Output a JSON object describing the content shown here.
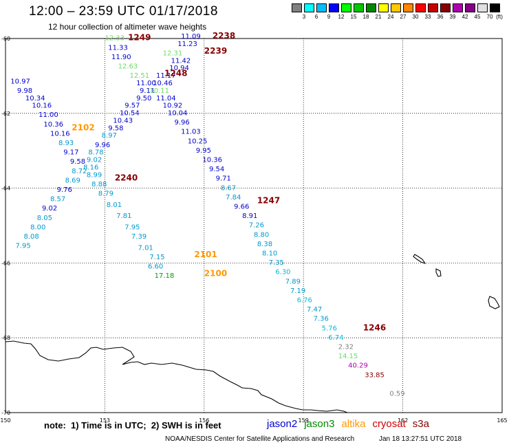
{
  "header": {
    "title": "12:00 – 23:59 UTC 01/17/2018",
    "subtitle": "12 hour collection of altimeter wave heights"
  },
  "color_scale": {
    "unit": "(ft)",
    "colors": [
      "#808080",
      "#00ffff",
      "#00bfff",
      "#0000ff",
      "#00ff00",
      "#00c800",
      "#008800",
      "#ffff00",
      "#ffc800",
      "#ff8800",
      "#ff0000",
      "#c80000",
      "#880000",
      "#b000b0",
      "#880088",
      "#e0e0e0",
      "#000000"
    ],
    "labels": [
      "3",
      "6",
      "9",
      "12",
      "15",
      "18",
      "21",
      "24",
      "27",
      "30",
      "33",
      "36",
      "39",
      "42",
      "45",
      "70"
    ]
  },
  "axes": {
    "x_ticks": [
      "150",
      "153",
      "156",
      "159",
      "162",
      "165"
    ],
    "y_ticks": [
      "-60",
      "-62",
      "-64",
      "-66",
      "-68",
      "-70"
    ]
  },
  "satellites": [
    {
      "name": "jason2",
      "color": "#0000cc"
    },
    {
      "name": "jason3",
      "color": "#008800"
    },
    {
      "name": "altika",
      "color": "#ff9900"
    },
    {
      "name": "cryosat",
      "color": "#cc0000"
    },
    {
      "name": "s3a",
      "color": "#880000"
    }
  ],
  "passes": [
    {
      "label": "1249",
      "lon": 153.7,
      "lat": -60.05,
      "color": "#880000"
    },
    {
      "label": "2238",
      "lon": 156.25,
      "lat": -60.0,
      "color": "#880000"
    },
    {
      "label": "2239",
      "lon": 156.0,
      "lat": -60.4,
      "color": "#880000"
    },
    {
      "label": "1248",
      "lon": 154.8,
      "lat": -61.0,
      "color": "#880000"
    },
    {
      "label": "2102",
      "lon": 152.0,
      "lat": -62.45,
      "color": "#ff9900"
    },
    {
      "label": "2240",
      "lon": 153.3,
      "lat": -63.8,
      "color": "#880000"
    },
    {
      "label": "1247",
      "lon": 157.6,
      "lat": -64.4,
      "color": "#880000"
    },
    {
      "label": "2101",
      "lon": 155.7,
      "lat": -65.85,
      "color": "#ff9900"
    },
    {
      "label": "2100",
      "lon": 156.0,
      "lat": -66.35,
      "color": "#ff9900"
    },
    {
      "label": "1246",
      "lon": 160.8,
      "lat": -67.8,
      "color": "#880000"
    }
  ],
  "wave_heights": [
    {
      "v": "12.33",
      "lon": 153.0,
      "lat": -60.05,
      "c": "#66dd66"
    },
    {
      "v": "11.33",
      "lon": 153.1,
      "lat": -60.3,
      "c": "#0000cc"
    },
    {
      "v": "11.90",
      "lon": 153.2,
      "lat": -60.55,
      "c": "#0000cc"
    },
    {
      "v": "12.63",
      "lon": 153.4,
      "lat": -60.8,
      "c": "#66dd66"
    },
    {
      "v": "12.51",
      "lon": 153.75,
      "lat": -61.05,
      "c": "#66dd66"
    },
    {
      "v": "11.00",
      "lon": 153.95,
      "lat": -61.25,
      "c": "#0000cc"
    },
    {
      "v": "9.11",
      "lon": 154.05,
      "lat": -61.45,
      "c": "#0000cc"
    },
    {
      "v": "9.50",
      "lon": 153.95,
      "lat": -61.65,
      "c": "#0000cc"
    },
    {
      "v": "9.57",
      "lon": 153.6,
      "lat": -61.85,
      "c": "#0000cc"
    },
    {
      "v": "10.54",
      "lon": 153.45,
      "lat": -62.05,
      "c": "#0000cc"
    },
    {
      "v": "10.43",
      "lon": 153.25,
      "lat": -62.25,
      "c": "#0000cc"
    },
    {
      "v": "9.58",
      "lon": 153.1,
      "lat": -62.45,
      "c": "#0000cc"
    },
    {
      "v": "8.97",
      "lon": 152.9,
      "lat": -62.65,
      "c": "#0099cc"
    },
    {
      "v": "9.96",
      "lon": 152.7,
      "lat": -62.9,
      "c": "#0000cc"
    },
    {
      "v": "8.78",
      "lon": 152.5,
      "lat": -63.1,
      "c": "#0099cc"
    },
    {
      "v": "9.02",
      "lon": 152.45,
      "lat": -63.3,
      "c": "#0099cc"
    },
    {
      "v": "8.16",
      "lon": 152.35,
      "lat": -63.5,
      "c": "#0099cc"
    },
    {
      "v": "8.99",
      "lon": 152.45,
      "lat": -63.7,
      "c": "#0099cc"
    },
    {
      "v": "8.88",
      "lon": 152.6,
      "lat": -63.95,
      "c": "#0099cc"
    },
    {
      "v": "8.79",
      "lon": 152.8,
      "lat": -64.2,
      "c": "#0099cc"
    },
    {
      "v": "8.01",
      "lon": 153.05,
      "lat": -64.5,
      "c": "#0099cc"
    },
    {
      "v": "7.81",
      "lon": 153.35,
      "lat": -64.8,
      "c": "#0099cc"
    },
    {
      "v": "7.95",
      "lon": 153.6,
      "lat": -65.1,
      "c": "#0099cc"
    },
    {
      "v": "7.39",
      "lon": 153.8,
      "lat": -65.35,
      "c": "#0099cc"
    },
    {
      "v": "7.01",
      "lon": 154.0,
      "lat": -65.65,
      "c": "#0099cc"
    },
    {
      "v": "7.15",
      "lon": 154.35,
      "lat": -65.9,
      "c": "#0099cc"
    },
    {
      "v": "6.60",
      "lon": 154.3,
      "lat": -66.15,
      "c": "#0099cc"
    },
    {
      "v": "17.18",
      "lon": 154.5,
      "lat": -66.4,
      "c": "#009900"
    },
    {
      "v": "10.97",
      "lon": 150.15,
      "lat": -61.2,
      "c": "#0000cc"
    },
    {
      "v": "9.98",
      "lon": 150.35,
      "lat": -61.45,
      "c": "#0000cc"
    },
    {
      "v": "10.34",
      "lon": 150.6,
      "lat": -61.65,
      "c": "#0000cc"
    },
    {
      "v": "10.16",
      "lon": 150.8,
      "lat": -61.85,
      "c": "#0000cc"
    },
    {
      "v": "11.00",
      "lon": 151.0,
      "lat": -62.1,
      "c": "#0000cc"
    },
    {
      "v": "10.36",
      "lon": 151.15,
      "lat": -62.35,
      "c": "#0000cc"
    },
    {
      "v": "10.16",
      "lon": 151.35,
      "lat": -62.6,
      "c": "#0000cc"
    },
    {
      "v": "8.93",
      "lon": 151.6,
      "lat": -62.85,
      "c": "#0099cc"
    },
    {
      "v": "9.17",
      "lon": 151.75,
      "lat": -63.1,
      "c": "#0000cc"
    },
    {
      "v": "9.58",
      "lon": 151.95,
      "lat": -63.35,
      "c": "#0000cc"
    },
    {
      "v": "8.72",
      "lon": 152.0,
      "lat": -63.6,
      "c": "#0099cc"
    },
    {
      "v": "8.69",
      "lon": 151.8,
      "lat": -63.85,
      "c": "#0099cc"
    },
    {
      "v": "9.76",
      "lon": 151.55,
      "lat": -64.1,
      "c": "#0000cc"
    },
    {
      "v": "8.57",
      "lon": 151.35,
      "lat": -64.35,
      "c": "#0099cc"
    },
    {
      "v": "9.02",
      "lon": 151.1,
      "lat": -64.6,
      "c": "#0000cc"
    },
    {
      "v": "8.05",
      "lon": 150.95,
      "lat": -64.85,
      "c": "#0099cc"
    },
    {
      "v": "8.00",
      "lon": 150.75,
      "lat": -65.1,
      "c": "#0099cc"
    },
    {
      "v": "8.08",
      "lon": 150.55,
      "lat": -65.35,
      "c": "#0099cc"
    },
    {
      "v": "7.95",
      "lon": 150.3,
      "lat": -65.6,
      "c": "#0099cc"
    },
    {
      "v": "11.09",
      "lon": 155.3,
      "lat": -60.0,
      "c": "#0000cc"
    },
    {
      "v": "11.23",
      "lon": 155.2,
      "lat": -60.2,
      "c": "#0000cc"
    },
    {
      "v": "12.31",
      "lon": 154.75,
      "lat": -60.45,
      "c": "#66dd66"
    },
    {
      "v": "11.42",
      "lon": 155.0,
      "lat": -60.65,
      "c": "#0000cc"
    },
    {
      "v": "10.94",
      "lon": 154.95,
      "lat": -60.85,
      "c": "#0000cc"
    },
    {
      "v": "11.17",
      "lon": 154.55,
      "lat": -61.05,
      "c": "#0000cc"
    },
    {
      "v": "10.46",
      "lon": 154.45,
      "lat": -61.25,
      "c": "#0000cc"
    },
    {
      "v": "10.11",
      "lon": 154.35,
      "lat": -61.45,
      "c": "#66dd66"
    },
    {
      "v": "11.04",
      "lon": 154.55,
      "lat": -61.65,
      "c": "#0000cc"
    },
    {
      "v": "10.92",
      "lon": 154.75,
      "lat": -61.85,
      "c": "#0000cc"
    },
    {
      "v": "10.04",
      "lon": 154.9,
      "lat": -62.05,
      "c": "#0000cc"
    },
    {
      "v": "9.96",
      "lon": 155.1,
      "lat": -62.3,
      "c": "#0000cc"
    },
    {
      "v": "11.03",
      "lon": 155.3,
      "lat": -62.55,
      "c": "#0000cc"
    },
    {
      "v": "10.25",
      "lon": 155.5,
      "lat": -62.8,
      "c": "#0000cc"
    },
    {
      "v": "9.95",
      "lon": 155.75,
      "lat": -63.05,
      "c": "#0000cc"
    },
    {
      "v": "10.36",
      "lon": 155.95,
      "lat": -63.3,
      "c": "#0000cc"
    },
    {
      "v": "9.54",
      "lon": 156.15,
      "lat": -63.55,
      "c": "#0000cc"
    },
    {
      "v": "9.71",
      "lon": 156.35,
      "lat": -63.8,
      "c": "#0000cc"
    },
    {
      "v": "8.67",
      "lon": 156.5,
      "lat": -64.05,
      "c": "#0099cc"
    },
    {
      "v": "7.84",
      "lon": 156.65,
      "lat": -64.3,
      "c": "#0099cc"
    },
    {
      "v": "9.66",
      "lon": 156.9,
      "lat": -64.55,
      "c": "#0000cc"
    },
    {
      "v": "8.91",
      "lon": 157.15,
      "lat": -64.8,
      "c": "#0000cc"
    },
    {
      "v": "7.26",
      "lon": 157.35,
      "lat": -65.05,
      "c": "#0099cc"
    },
    {
      "v": "8.80",
      "lon": 157.5,
      "lat": -65.3,
      "c": "#0099cc"
    },
    {
      "v": "8.38",
      "lon": 157.6,
      "lat": -65.55,
      "c": "#0099cc"
    },
    {
      "v": "8.10",
      "lon": 157.75,
      "lat": -65.8,
      "c": "#0099cc"
    },
    {
      "v": "7.35",
      "lon": 157.95,
      "lat": -66.05,
      "c": "#0099cc"
    },
    {
      "v": "6.30",
      "lon": 158.15,
      "lat": -66.3,
      "c": "#00bbdd"
    },
    {
      "v": "7.89",
      "lon": 158.45,
      "lat": -66.55,
      "c": "#0099cc"
    },
    {
      "v": "7.19",
      "lon": 158.6,
      "lat": -66.8,
      "c": "#0099cc"
    },
    {
      "v": "6.76",
      "lon": 158.8,
      "lat": -67.05,
      "c": "#00bbdd"
    },
    {
      "v": "7.47",
      "lon": 159.1,
      "lat": -67.3,
      "c": "#0099cc"
    },
    {
      "v": "7.36",
      "lon": 159.3,
      "lat": -67.55,
      "c": "#0099cc"
    },
    {
      "v": "5.76",
      "lon": 159.55,
      "lat": -67.8,
      "c": "#00bbdd"
    },
    {
      "v": "6.74",
      "lon": 159.75,
      "lat": -68.05,
      "c": "#00bbdd"
    },
    {
      "v": "2.32",
      "lon": 160.05,
      "lat": -68.3,
      "c": "#808080"
    },
    {
      "v": "14.15",
      "lon": 160.05,
      "lat": -68.55,
      "c": "#66dd66"
    },
    {
      "v": "40.29",
      "lon": 160.35,
      "lat": -68.8,
      "c": "#aa00aa"
    },
    {
      "v": "33.85",
      "lon": 160.85,
      "lat": -69.05,
      "c": "#880000"
    },
    {
      "v": "0.59",
      "lon": 161.6,
      "lat": -69.55,
      "c": "#808080"
    }
  ],
  "note": "note:  1) Time is in UTC;  2) SWH is in feet",
  "footer": {
    "credit": "NOAA/NESDIS Center for Satellite Applications and Research",
    "timestamp": "Jan 18 13:27:51 UTC 2018"
  }
}
